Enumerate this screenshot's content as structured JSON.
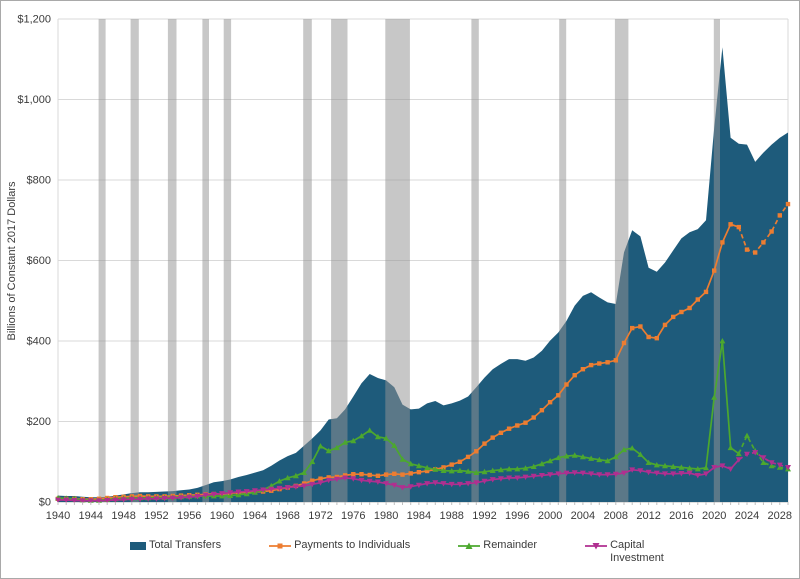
{
  "window": {
    "background_color": "#ffffff",
    "border_color": "#a9a9a9"
  },
  "chart_data": {
    "type": "area",
    "title": "",
    "xlabel": "",
    "ylabel": "Billions of Constant 2017 Dollars",
    "x_range": [
      1940,
      2029
    ],
    "y_range": [
      0,
      1200
    ],
    "grid": "horizontal",
    "legend_position": "bottom",
    "y_ticks": {
      "values": [
        0,
        200,
        400,
        600,
        800,
        1000,
        1200
      ],
      "labels": [
        "$0",
        "$200",
        "$400",
        "$600",
        "$800",
        "$1,000",
        "$1,200"
      ]
    },
    "x_ticks": {
      "values": [
        1940,
        1944,
        1948,
        1952,
        1956,
        1960,
        1964,
        1968,
        1972,
        1976,
        1980,
        1984,
        1988,
        1992,
        1996,
        2000,
        2004,
        2008,
        2012,
        2016,
        2020,
        2024,
        2028
      ],
      "labels": [
        "1940",
        "1944",
        "1948",
        "1952",
        "1956",
        "1960",
        "1964",
        "1968",
        "1972",
        "1976",
        "1980",
        "1984",
        "1988",
        "1992",
        "1996",
        "2000",
        "2004",
        "2008",
        "2012",
        "2016",
        "2020",
        "2024",
        "2028"
      ]
    },
    "recession_bands": [
      [
        1944.95,
        1945.8
      ],
      [
        1948.85,
        1949.85
      ],
      [
        1953.4,
        1954.45
      ],
      [
        1957.6,
        1958.4
      ],
      [
        1960.2,
        1961.1
      ],
      [
        1969.9,
        1970.95
      ],
      [
        1973.3,
        1975.3
      ],
      [
        1979.9,
        1982.9
      ],
      [
        1990.4,
        1991.3
      ],
      [
        2001.1,
        2001.95
      ],
      [
        2007.9,
        2009.55
      ],
      [
        2019.95,
        2020.7
      ]
    ],
    "colors": {
      "grid": "#d9d9d9",
      "axis": "#bfbfbf",
      "tick_text": "#3b3b3b",
      "recession": "rgba(148,148,148,0.52)"
    },
    "projection_dashed_from": 2023,
    "series": [
      {
        "name": "Total Transfers",
        "type": "area",
        "color": "#1e5b7b",
        "values": [
          16,
          15,
          15,
          13,
          12,
          12,
          13,
          16,
          19,
          22,
          24,
          24,
          25,
          26,
          27,
          29,
          31,
          35,
          42,
          49,
          52,
          56,
          62,
          67,
          73,
          79,
          90,
          103,
          114,
          122,
          140,
          158,
          178,
          205,
          208,
          230,
          262,
          295,
          318,
          308,
          302,
          285,
          242,
          230,
          232,
          245,
          251,
          240,
          245,
          252,
          262,
          285,
          309,
          330,
          343,
          355,
          355,
          351,
          359,
          376,
          401,
          421,
          450,
          488,
          512,
          521,
          508,
          496,
          492,
          620,
          675,
          660,
          582,
          572,
          595,
          625,
          655,
          670,
          678,
          700,
          930,
          1130,
          905,
          890,
          888,
          845,
          868,
          888,
          905,
          918
        ]
      },
      {
        "name": "Payments to Individuals",
        "type": "line",
        "color": "#ed7d31",
        "marker": "square",
        "values": [
          8,
          8,
          8,
          7,
          7,
          8,
          10,
          12,
          13,
          14,
          15,
          14,
          14,
          14,
          15,
          16,
          17,
          18,
          19,
          20,
          20,
          22,
          23,
          24,
          25,
          26,
          28,
          32,
          36,
          40,
          46,
          53,
          58,
          61,
          62,
          66,
          69,
          69,
          67,
          65,
          68,
          70,
          68,
          71,
          74,
          77,
          81,
          86,
          93,
          100,
          112,
          126,
          145,
          160,
          172,
          182,
          190,
          197,
          210,
          228,
          248,
          265,
          292,
          315,
          330,
          340,
          344,
          347,
          352,
          395,
          432,
          436,
          410,
          407,
          440,
          460,
          472,
          482,
          503,
          522,
          575,
          645,
          690,
          683,
          627,
          620,
          645,
          672,
          712,
          740
        ]
      },
      {
        "name": "Remainder",
        "type": "line",
        "color": "#4ca82e",
        "marker": "triangle-up",
        "values": [
          10,
          9,
          8,
          5,
          4,
          4,
          6,
          8,
          9,
          10,
          10,
          10,
          11,
          11,
          12,
          13,
          14,
          15,
          15,
          15,
          15,
          16,
          18,
          20,
          24,
          30,
          40,
          52,
          60,
          65,
          73,
          100,
          139,
          127,
          135,
          148,
          152,
          164,
          178,
          162,
          158,
          140,
          106,
          95,
          90,
          85,
          81,
          78,
          77,
          78,
          76,
          73,
          75,
          78,
          80,
          82,
          82,
          84,
          88,
          95,
          102,
          110,
          114,
          116,
          112,
          108,
          105,
          102,
          112,
          130,
          134,
          118,
          98,
          92,
          90,
          88,
          86,
          84,
          82,
          85,
          260,
          400,
          135,
          120,
          165,
          127,
          98,
          90,
          86,
          82
        ]
      },
      {
        "name": "Capital Investment",
        "type": "line",
        "color": "#b02f90",
        "marker": "triangle-down",
        "values": [
          5,
          5,
          4,
          3,
          3,
          3,
          4,
          5,
          6,
          7,
          7,
          8,
          8,
          9,
          10,
          11,
          12,
          14,
          17,
          19,
          21,
          23,
          25,
          26,
          28,
          30,
          32,
          34,
          36,
          38,
          40,
          44,
          48,
          54,
          57,
          60,
          58,
          54,
          52,
          50,
          46,
          42,
          36,
          38,
          42,
          46,
          48,
          46,
          44,
          44,
          46,
          48,
          52,
          56,
          58,
          60,
          60,
          62,
          64,
          66,
          68,
          70,
          72,
          73,
          72,
          70,
          68,
          68,
          69,
          72,
          80,
          78,
          74,
          72,
          70,
          70,
          71,
          72,
          66,
          70,
          86,
          90,
          82,
          105,
          119,
          123,
          110,
          98,
          92,
          86
        ]
      }
    ]
  }
}
